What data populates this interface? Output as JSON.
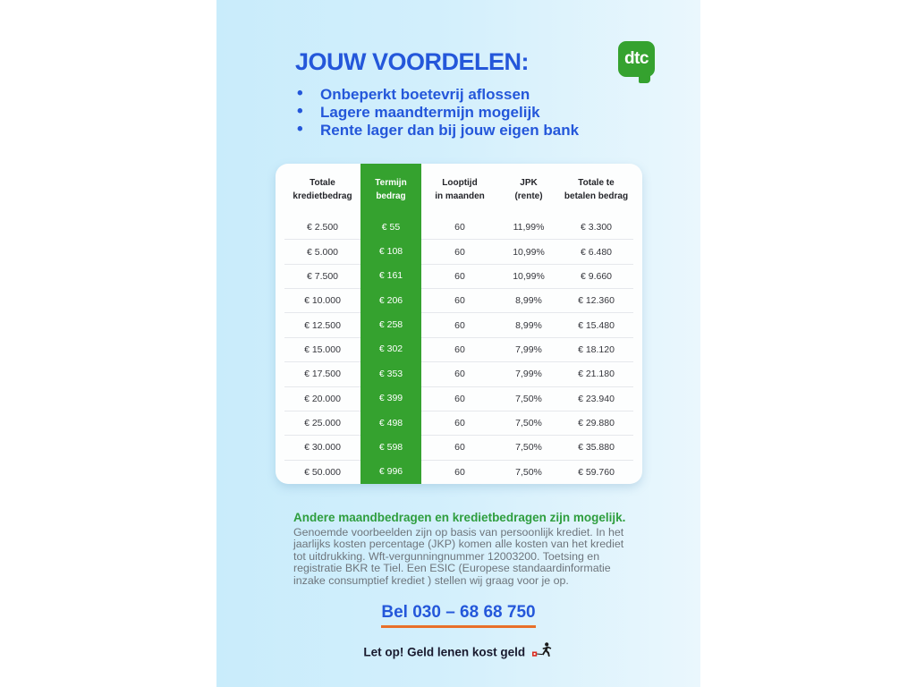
{
  "page": {
    "title": "JOUW VOORDELEN:",
    "logo_text": "dtc",
    "bullets": [
      "Onbeperkt boetevrij aflossen",
      "Lagere maandtermijn mogelijk",
      "Rente lager dan bij jouw eigen bank"
    ],
    "table": {
      "headers": [
        "Totale\nkredietbedrag",
        "Termijn\nbedrag",
        "Looptijd\nin maanden",
        "JPK\n(rente)",
        "Totale te\nbetalen bedrag"
      ],
      "highlighted_column": "Termijn bedrag",
      "rows": [
        [
          "€ 2.500",
          "€ 55",
          "60",
          "11,99%",
          "€ 3.300"
        ],
        [
          "€ 5.000",
          "€ 108",
          "60",
          "10,99%",
          "€ 6.480"
        ],
        [
          "€ 7.500",
          "€ 161",
          "60",
          "10,99%",
          "€ 9.660"
        ],
        [
          "€ 10.000",
          "€ 206",
          "60",
          "8,99%",
          "€ 12.360"
        ],
        [
          "€ 12.500",
          "€ 258",
          "60",
          "8,99%",
          "€ 15.480"
        ],
        [
          "€ 15.000",
          "€ 302",
          "60",
          "7,99%",
          "€ 18.120"
        ],
        [
          "€ 17.500",
          "€ 353",
          "60",
          "7,99%",
          "€ 21.180"
        ],
        [
          "€ 20.000",
          "€ 399",
          "60",
          "7,50%",
          "€ 23.940"
        ],
        [
          "€ 25.000",
          "€ 498",
          "60",
          "7,50%",
          "€ 29.880"
        ],
        [
          "€ 30.000",
          "€ 598",
          "60",
          "7,50%",
          "€ 35.880"
        ],
        [
          "€ 50.000",
          "€ 996",
          "60",
          "7,50%",
          "€ 59.760"
        ]
      ]
    },
    "note_heading": "Andere maandbedragen en kredietbedragen zijn mogelijk.",
    "note_body": "Genoemde voorbeelden zijn op basis van persoonlijk krediet. In het jaarlijks kosten percentage (JKP) komen alle kosten van het krediet tot uitdrukking. Wft-vergunningnummer 12003200. Toetsing en registratie BKR te Tiel. Een ESIC (Europese standaardinformatie inzake consumptief krediet ) stellen wij graag voor je op.",
    "phone_cta": "Bel 030 – 68 68 750",
    "warning": "Let op! Geld lenen kost geld",
    "colors": {
      "accent_blue": "#2457da",
      "brand_green": "#35a22f",
      "heading_green": "#2e9e3e",
      "underline_orange": "#e8702a",
      "panel_bg_left": "#c9ecfb",
      "panel_bg_right": "#eaf7fd"
    }
  }
}
